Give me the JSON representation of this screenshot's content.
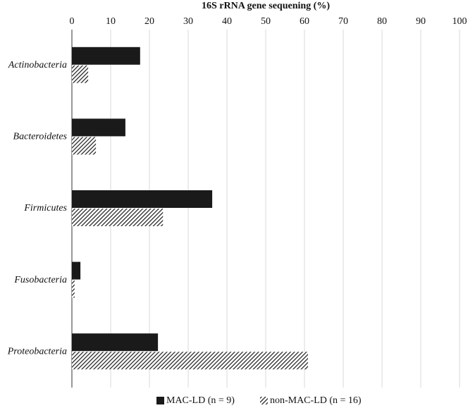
{
  "chart_data": {
    "type": "hbar",
    "title": "16S rRNA gene sequening (%)",
    "categories": [
      "Actinobacteria",
      "Bacteroidetes",
      "Firmicutes",
      "Fusobacteria",
      "Proteobacteria"
    ],
    "series": [
      {
        "name": "MAC-LD (n = 9)",
        "color": "#1a1a1a",
        "fill": "solid",
        "values": [
          17.6,
          13.8,
          36.2,
          2.2,
          22.2
        ]
      },
      {
        "name": "non-MAC-LD (n = 16)",
        "color": "#1a1a1a",
        "fill": "hatch",
        "values": [
          4.2,
          6.2,
          23.5,
          0.7,
          60.9
        ]
      }
    ],
    "xlim": [
      0,
      100
    ],
    "xticks": [
      0,
      10,
      20,
      30,
      40,
      50,
      60,
      70,
      80,
      90,
      100
    ],
    "grid": true,
    "legend": "bottom"
  }
}
